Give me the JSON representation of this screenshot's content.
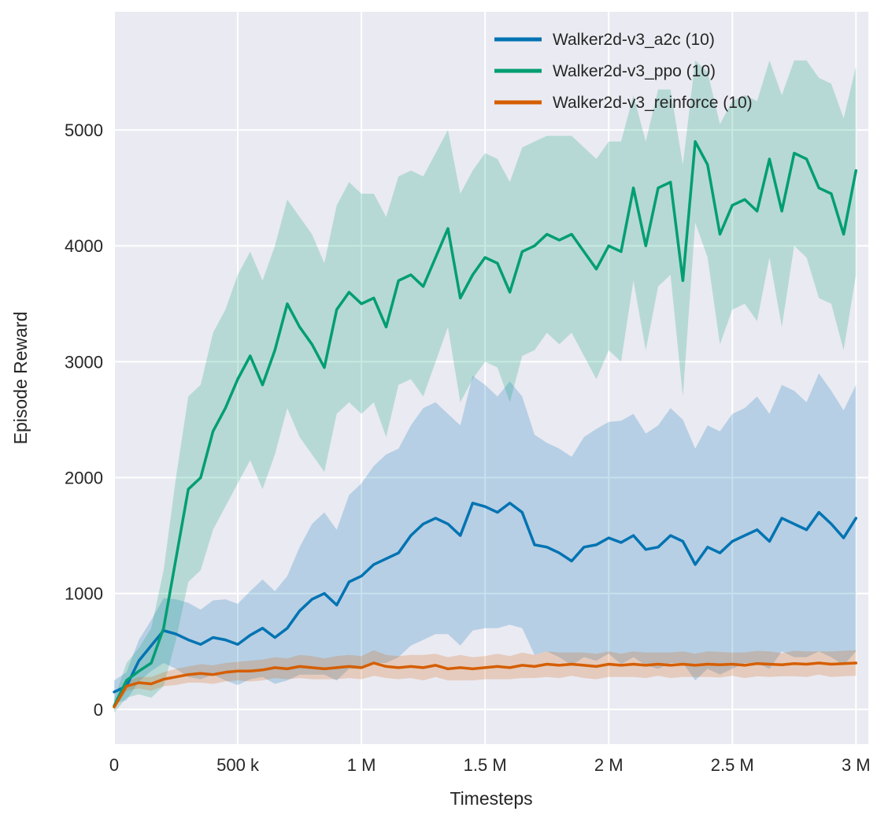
{
  "figure": {
    "background": "#ffffff",
    "plot_background": "#eaeaf2",
    "grid_color": "#ffffff",
    "text_color": "#262626"
  },
  "chart_data": {
    "type": "line",
    "title": "",
    "xlabel": "Timesteps",
    "ylabel": "Episode Reward",
    "xlim_millions": [
      0,
      3.05
    ],
    "ylim": [
      -300,
      6020
    ],
    "grid": true,
    "legend_position": "upper right",
    "legend_frame": false,
    "band_alpha": 0.22,
    "x_ticks": {
      "values_millions": [
        0,
        0.5,
        1,
        1.5,
        2,
        2.5,
        3
      ],
      "labels": [
        "0",
        "500 k",
        "1 M",
        "1.5 M",
        "2 M",
        "2.5 M",
        "3 M"
      ]
    },
    "y_ticks": {
      "values": [
        0,
        1000,
        2000,
        3000,
        4000,
        5000
      ],
      "labels": [
        "0",
        "1000",
        "2000",
        "3000",
        "4000",
        "5000"
      ]
    },
    "x_millions": [
      0,
      0.05,
      0.1,
      0.15,
      0.2,
      0.25,
      0.3,
      0.35,
      0.4,
      0.45,
      0.5,
      0.55,
      0.6,
      0.65,
      0.7,
      0.75,
      0.8,
      0.85,
      0.9,
      0.95,
      1,
      1.05,
      1.1,
      1.15,
      1.2,
      1.25,
      1.3,
      1.35,
      1.4,
      1.45,
      1.5,
      1.55,
      1.6,
      1.65,
      1.7,
      1.75,
      1.8,
      1.85,
      1.9,
      1.95,
      2,
      2.05,
      2.1,
      2.15,
      2.2,
      2.25,
      2.3,
      2.35,
      2.4,
      2.45,
      2.5,
      2.55,
      2.6,
      2.65,
      2.7,
      2.75,
      2.8,
      2.85,
      2.9,
      2.95,
      3
    ],
    "series": [
      {
        "name": "Walker2d-v3_a2c (10)",
        "color": "#0173b2",
        "mean": [
          150,
          200,
          420,
          550,
          680,
          650,
          600,
          560,
          620,
          600,
          560,
          640,
          700,
          620,
          700,
          850,
          950,
          1000,
          900,
          1100,
          1150,
          1250,
          1300,
          1350,
          1500,
          1600,
          1650,
          1600,
          1500,
          1780,
          1750,
          1700,
          1780,
          1700,
          1420,
          1400,
          1350,
          1280,
          1400,
          1420,
          1480,
          1440,
          1500,
          1380,
          1400,
          1500,
          1450,
          1250,
          1400,
          1350,
          1450,
          1500,
          1550,
          1450,
          1650,
          1600,
          1550,
          1700,
          1600,
          1480,
          1650
        ],
        "spread": [
          100,
          120,
          180,
          220,
          280,
          300,
          320,
          300,
          320,
          350,
          350,
          380,
          420,
          400,
          450,
          550,
          650,
          700,
          650,
          750,
          800,
          850,
          900,
          900,
          950,
          1000,
          1000,
          950,
          950,
          1100,
          1050,
          1000,
          1050,
          1000,
          950,
          900,
          900,
          900,
          950,
          1000,
          1000,
          1050,
          1050,
          1000,
          1050,
          1100,
          1050,
          1000,
          1050,
          1050,
          1100,
          1100,
          1150,
          1100,
          1150,
          1150,
          1100,
          1200,
          1150,
          1100,
          1150
        ]
      },
      {
        "name": "Walker2d-v3_ppo (10)",
        "color": "#029e73",
        "mean": [
          30,
          250,
          330,
          400,
          700,
          1300,
          1900,
          2000,
          2400,
          2600,
          2850,
          3050,
          2800,
          3100,
          3500,
          3300,
          3150,
          2950,
          3450,
          3600,
          3500,
          3550,
          3300,
          3700,
          3750,
          3650,
          3900,
          4150,
          3550,
          3750,
          3900,
          3850,
          3600,
          3950,
          4000,
          4100,
          4050,
          4100,
          3950,
          3800,
          4000,
          3950,
          4500,
          4000,
          4500,
          4550,
          3700,
          4900,
          4700,
          4100,
          4350,
          4400,
          4300,
          4750,
          4300,
          4800,
          4750,
          4500,
          4450,
          4100,
          4650
        ],
        "spread": [
          60,
          150,
          200,
          300,
          500,
          700,
          800,
          800,
          850,
          850,
          900,
          900,
          900,
          900,
          900,
          950,
          950,
          900,
          900,
          950,
          950,
          900,
          950,
          900,
          900,
          950,
          900,
          850,
          900,
          900,
          900,
          900,
          950,
          900,
          900,
          850,
          900,
          850,
          900,
          950,
          900,
          950,
          800,
          900,
          850,
          800,
          1000,
          700,
          800,
          950,
          900,
          900,
          950,
          850,
          1000,
          800,
          850,
          950,
          950,
          1000,
          900
        ]
      },
      {
        "name": "Walker2d-v3_reinforce (10)",
        "color": "#d55e00",
        "mean": [
          20,
          200,
          230,
          220,
          260,
          280,
          300,
          310,
          300,
          320,
          330,
          330,
          340,
          360,
          350,
          370,
          360,
          350,
          360,
          370,
          360,
          400,
          370,
          360,
          370,
          360,
          380,
          350,
          360,
          350,
          360,
          370,
          360,
          380,
          370,
          390,
          380,
          390,
          380,
          370,
          390,
          380,
          390,
          380,
          390,
          380,
          390,
          380,
          390,
          385,
          390,
          380,
          395,
          390,
          385,
          395,
          390,
          400,
          390,
          395,
          400
        ],
        "spread": [
          20,
          40,
          50,
          60,
          60,
          70,
          70,
          80,
          80,
          80,
          80,
          90,
          90,
          90,
          90,
          100,
          100,
          90,
          100,
          100,
          100,
          110,
          100,
          100,
          100,
          110,
          100,
          100,
          110,
          100,
          100,
          110,
          100,
          110,
          100,
          110,
          110,
          100,
          110,
          110,
          110,
          100,
          110,
          110,
          100,
          110,
          110,
          100,
          110,
          110,
          100,
          110,
          110,
          110,
          100,
          110,
          110,
          100,
          110,
          110,
          110
        ]
      }
    ]
  }
}
